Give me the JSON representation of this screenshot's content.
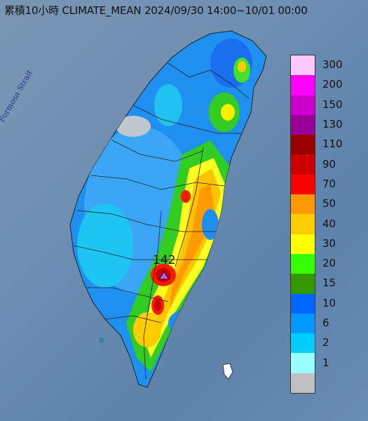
{
  "title": "累積10小時 CLIMATE_MEAN 2024/09/30 14:00~10/01 00:00",
  "strait_label": "Formosa Strait",
  "peak": {
    "value": "142",
    "marker": "triangle-icon",
    "marker_color": "#c05cd8"
  },
  "legend": [
    {
      "label": "300",
      "color": "#ffc8ff"
    },
    {
      "label": "200",
      "color": "#ff00ff"
    },
    {
      "label": "150",
      "color": "#cc00cc"
    },
    {
      "label": "130",
      "color": "#990099"
    },
    {
      "label": "110",
      "color": "#990000"
    },
    {
      "label": "90",
      "color": "#cc0000"
    },
    {
      "label": "70",
      "color": "#ff0000"
    },
    {
      "label": "50",
      "color": "#ff9900"
    },
    {
      "label": "40",
      "color": "#ffcc00"
    },
    {
      "label": "30",
      "color": "#ffff00"
    },
    {
      "label": "20",
      "color": "#33ff00"
    },
    {
      "label": "15",
      "color": "#339900"
    },
    {
      "label": "10",
      "color": "#0066ff"
    },
    {
      "label": "6",
      "color": "#0099ff"
    },
    {
      "label": "2",
      "color": "#00ccff"
    },
    {
      "label": "1",
      "color": "#99ffff"
    },
    {
      "label": "",
      "color": "#c0c0c0"
    }
  ]
}
